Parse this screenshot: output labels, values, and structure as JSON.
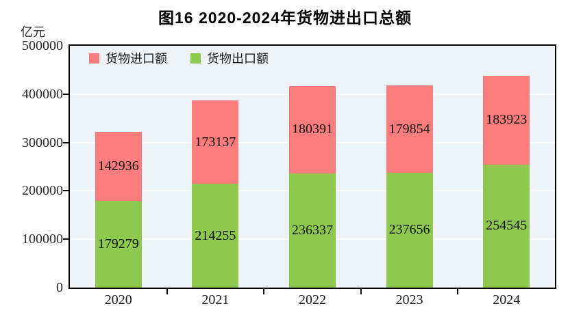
{
  "chart": {
    "title": "图16  2020-2024年货物进出口总额",
    "unit": "亿元"
  },
  "chart_data": {
    "type": "bar",
    "stacked": true,
    "title": "图16  2020-2024年货物进出口总额",
    "ylabel": "亿元",
    "categories": [
      "2020",
      "2021",
      "2022",
      "2023",
      "2024"
    ],
    "series": [
      {
        "name": "货物出口额",
        "color": "#8EC84E",
        "values": [
          179279,
          214255,
          236337,
          237656,
          254545
        ]
      },
      {
        "name": "货物进口额",
        "color": "#FA7C7C",
        "values": [
          142936,
          173137,
          180391,
          179854,
          183923
        ]
      }
    ],
    "legend": {
      "position": "top-left-inside",
      "items": [
        {
          "label": "货物进口额",
          "color": "#FA7C7C"
        },
        {
          "label": "货物出口额",
          "color": "#8EC84E"
        }
      ]
    },
    "ylim": [
      0,
      500000
    ],
    "ytick_step": 100000,
    "yticks": [
      "0",
      "100000",
      "200000",
      "300000",
      "400000",
      "500000"
    ],
    "grid": "horizontal",
    "colors": {
      "plot_background": "#EDF3F7",
      "gridline": "#FFFFFF",
      "border": "#000000",
      "text": "#1c1c1c"
    }
  }
}
